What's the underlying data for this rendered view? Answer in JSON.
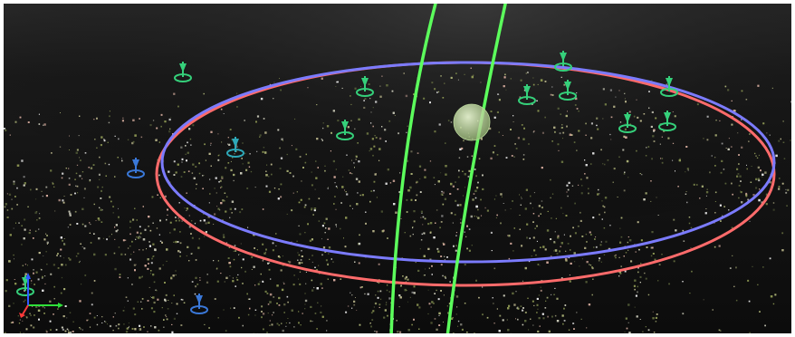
{
  "viewer": {
    "background_color": "#151515",
    "point_colors": [
      "#6f7a45",
      "#8a9452",
      "#a7ad74",
      "#c9c9b8",
      "#e6e6e6",
      "#57603a",
      "#b8b48a",
      "#d1a89a"
    ],
    "gizmo": {
      "pitch_ring_color": "#ff6b6b",
      "yaw_ring_color": "#7b7bff",
      "roll_ring_color": "#5cff5c",
      "pivot_color": "#cfe6b0"
    },
    "camera_markers": [
      {
        "color": "#35d07a",
        "icon": "camera-pin-icon"
      },
      {
        "color": "#35d07a",
        "icon": "camera-pin-icon"
      },
      {
        "color": "#35d07a",
        "icon": "camera-pin-icon"
      },
      {
        "color": "#35d07a",
        "icon": "camera-pin-icon"
      },
      {
        "color": "#35d07a",
        "icon": "camera-pin-icon"
      },
      {
        "color": "#35d07a",
        "icon": "camera-pin-icon"
      },
      {
        "color": "#35d07a",
        "icon": "camera-pin-icon"
      },
      {
        "color": "#35d07a",
        "icon": "camera-pin-icon"
      },
      {
        "color": "#35d07a",
        "icon": "camera-pin-icon"
      },
      {
        "color": "#2ea8b8",
        "icon": "camera-pin-icon"
      },
      {
        "color": "#3a78d8",
        "icon": "camera-pin-icon"
      },
      {
        "color": "#3a78d8",
        "icon": "camera-pin-icon"
      },
      {
        "color": "#35d07a",
        "icon": "camera-pin-icon"
      }
    ],
    "axes_triad": {
      "x_color": "#2fe03a",
      "y_color": "#2f5bff",
      "z_color": "#ff3a3a"
    }
  }
}
